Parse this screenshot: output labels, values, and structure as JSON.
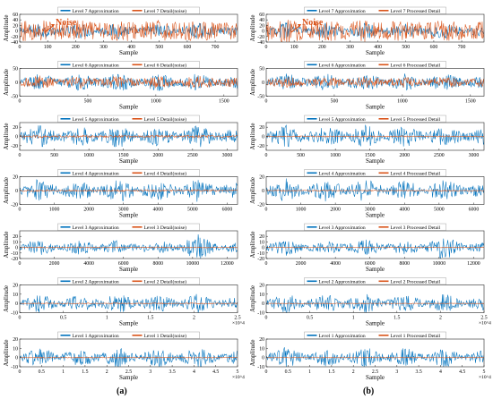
{
  "colors": {
    "approximation": "#0072BD",
    "detail": "#D95319",
    "axis": "#262626"
  },
  "panel_labels": [
    "(a)",
    "(b)"
  ],
  "annotation": {
    "text": "Noise"
  },
  "chart_data": [
    {
      "type": "line",
      "panel": "a",
      "level": 7,
      "title": "",
      "xlabel": "Sample",
      "ylabel": "Amplitude",
      "xlim": [
        0,
        780
      ],
      "ylim": [
        -40,
        60
      ],
      "xticks": [
        0,
        100,
        200,
        300,
        400,
        500,
        600,
        700
      ],
      "yticks": [
        -40,
        -20,
        0,
        20,
        40,
        60
      ],
      "x_multiplier": "",
      "envelope": [
        10,
        30,
        10,
        28,
        12,
        30,
        10,
        28,
        10,
        30,
        10,
        22
      ],
      "detail_envelope": [
        35,
        45,
        30,
        40,
        30,
        42,
        32,
        40,
        30,
        38,
        30,
        34
      ],
      "series": [
        {
          "name": "Level 7 Approximation"
        },
        {
          "name": "Level 7 Detail(noise)"
        }
      ],
      "annotation": "Noise"
    },
    {
      "type": "line",
      "panel": "a",
      "level": 6,
      "title": "",
      "xlabel": "Sample",
      "ylabel": "Amplitude",
      "xlim": [
        0,
        1600
      ],
      "ylim": [
        -50,
        50
      ],
      "xticks": [
        0,
        500,
        1000,
        1500
      ],
      "yticks": [
        -50,
        0,
        50
      ],
      "x_multiplier": "",
      "envelope": [
        12,
        35,
        12,
        32,
        14,
        35,
        12,
        32,
        12,
        34,
        12,
        24
      ],
      "detail_envelope": [
        12,
        25,
        12,
        22,
        12,
        24,
        12,
        22,
        12,
        24,
        12,
        18
      ],
      "series": [
        {
          "name": "Level 6 Approximation"
        },
        {
          "name": "Level 6 Detail(noise)"
        }
      ]
    },
    {
      "type": "line",
      "panel": "a",
      "level": 5,
      "title": "",
      "xlabel": "Sample",
      "ylabel": "Amplitude",
      "xlim": [
        0,
        3150
      ],
      "ylim": [
        -30,
        30
      ],
      "xticks": [
        0,
        500,
        1000,
        1500,
        2000,
        2500,
        3000
      ],
      "yticks": [
        -20,
        0,
        20
      ],
      "x_multiplier": "",
      "envelope": [
        8,
        26,
        8,
        24,
        9,
        26,
        8,
        24,
        8,
        25,
        8,
        18
      ],
      "detail_envelope": [
        2,
        3,
        2,
        3,
        2,
        3,
        2,
        3,
        2,
        3,
        2,
        2
      ],
      "series": [
        {
          "name": "Level 5 Approximation"
        },
        {
          "name": "Level 5 Detail(noise)"
        }
      ]
    },
    {
      "type": "line",
      "panel": "a",
      "level": 4,
      "title": "",
      "xlabel": "Sample",
      "ylabel": "Amplitude",
      "xlim": [
        0,
        6300
      ],
      "ylim": [
        -20,
        20
      ],
      "xticks": [
        0,
        1000,
        2000,
        3000,
        4000,
        5000,
        6000
      ],
      "yticks": [
        -20,
        0,
        20
      ],
      "x_multiplier": "",
      "envelope": [
        5,
        18,
        5,
        16,
        6,
        18,
        5,
        16,
        5,
        17,
        5,
        12
      ],
      "detail_envelope": [
        1,
        1.5,
        1,
        1.5,
        1,
        1.5,
        1,
        1.5,
        1,
        1.5,
        1,
        1
      ],
      "series": [
        {
          "name": "Level 4 Approximation"
        },
        {
          "name": "Level 4 Detail(noise)"
        }
      ]
    },
    {
      "type": "line",
      "panel": "a",
      "level": 3,
      "title": "",
      "xlabel": "Sample",
      "ylabel": "Amplitude",
      "xlim": [
        0,
        12600
      ],
      "ylim": [
        -20,
        30
      ],
      "xticks": [
        0,
        2000,
        4000,
        6000,
        8000,
        10000,
        12000
      ],
      "yticks": [
        -20,
        -10,
        0,
        10,
        20
      ],
      "x_multiplier": "",
      "envelope": [
        5,
        15,
        5,
        13,
        6,
        15,
        5,
        14,
        5,
        24,
        5,
        10
      ],
      "detail_envelope": [
        0.5,
        1,
        0.5,
        1,
        0.5,
        1,
        0.5,
        1,
        0.5,
        1,
        0.5,
        0.5
      ],
      "series": [
        {
          "name": "Level 3 Approximation"
        },
        {
          "name": "Level 3 Detail(noise)"
        }
      ]
    },
    {
      "type": "line",
      "panel": "a",
      "level": 2,
      "title": "",
      "xlabel": "Sample",
      "ylabel": "Amplitude",
      "xlim": [
        0,
        2.5
      ],
      "ylim": [
        -10,
        20
      ],
      "xticks": [
        0,
        0.5,
        1,
        1.5,
        2,
        2.5
      ],
      "yticks": [
        -10,
        0,
        10,
        20
      ],
      "x_multiplier": "×10^4",
      "envelope": [
        3,
        11,
        3,
        10,
        4,
        11,
        3,
        10,
        3,
        11,
        3,
        8
      ],
      "detail_envelope": [
        0.3,
        0.6,
        0.3,
        0.6,
        0.3,
        0.6,
        0.3,
        0.6,
        0.3,
        0.6,
        0.3,
        0.3
      ],
      "series": [
        {
          "name": "Level 2 Approximation"
        },
        {
          "name": "Level 2 Detail(noise)"
        }
      ]
    },
    {
      "type": "line",
      "panel": "a",
      "level": 1,
      "title": "",
      "xlabel": "Sample",
      "ylabel": "Amplitude",
      "xlim": [
        0,
        5
      ],
      "ylim": [
        -10,
        20
      ],
      "xticks": [
        0,
        0.5,
        1,
        1.5,
        2,
        2.5,
        3,
        3.5,
        4,
        4.5,
        5
      ],
      "yticks": [
        -10,
        0,
        10,
        20
      ],
      "x_multiplier": "×10^4",
      "envelope": [
        3,
        12,
        3,
        10,
        4,
        12,
        3,
        11,
        3,
        12,
        3,
        8
      ],
      "detail_envelope": [
        0.3,
        0.6,
        0.3,
        0.6,
        0.3,
        0.6,
        0.3,
        0.6,
        0.3,
        0.6,
        0.3,
        0.3
      ],
      "series": [
        {
          "name": "Level 1 Approximation"
        },
        {
          "name": "Level 1 Detail(noise)"
        }
      ]
    },
    {
      "type": "line",
      "panel": "b",
      "level": 7,
      "title": "",
      "xlabel": "Sample",
      "ylabel": "Amplitude",
      "xlim": [
        0,
        780
      ],
      "ylim": [
        -40,
        60
      ],
      "xticks": [
        0,
        100,
        200,
        300,
        400,
        500,
        600,
        700
      ],
      "yticks": [
        -40,
        -20,
        0,
        20,
        40,
        60
      ],
      "x_multiplier": "",
      "envelope": [
        10,
        30,
        10,
        28,
        12,
        30,
        10,
        28,
        10,
        30,
        10,
        22
      ],
      "detail_envelope": [
        35,
        45,
        30,
        40,
        30,
        42,
        32,
        40,
        30,
        38,
        30,
        34
      ],
      "series": [
        {
          "name": "Level 7 Approximation"
        },
        {
          "name": "Level 7 Processed Detail"
        }
      ],
      "annotation": "Noise"
    },
    {
      "type": "line",
      "panel": "b",
      "level": 6,
      "title": "",
      "xlabel": "Sample",
      "ylabel": "Amplitude",
      "xlim": [
        0,
        1600
      ],
      "ylim": [
        -50,
        50
      ],
      "xticks": [
        0,
        500,
        1000,
        1500
      ],
      "yticks": [
        -50,
        0,
        50
      ],
      "x_multiplier": "",
      "envelope": [
        12,
        35,
        12,
        32,
        14,
        35,
        12,
        32,
        12,
        34,
        12,
        24
      ],
      "detail_envelope": [
        10,
        22,
        10,
        20,
        10,
        22,
        10,
        20,
        10,
        22,
        10,
        16
      ],
      "series": [
        {
          "name": "Level 6 Approximation"
        },
        {
          "name": "Level 6 Processed Detail"
        }
      ]
    },
    {
      "type": "line",
      "panel": "b",
      "level": 5,
      "title": "",
      "xlabel": "Sample",
      "ylabel": "Amplitude",
      "xlim": [
        0,
        3150
      ],
      "ylim": [
        -30,
        30
      ],
      "xticks": [
        0,
        500,
        1000,
        1500,
        2000,
        2500,
        3000
      ],
      "yticks": [
        -20,
        0,
        20
      ],
      "x_multiplier": "",
      "envelope": [
        8,
        26,
        8,
        24,
        9,
        26,
        8,
        24,
        8,
        25,
        8,
        18
      ],
      "detail_envelope": [
        1,
        1.5,
        1,
        1.5,
        1,
        1.5,
        1,
        1.5,
        1,
        1.5,
        1,
        1
      ],
      "series": [
        {
          "name": "Level 5 Approximation"
        },
        {
          "name": "Level 5 Processed Detail"
        }
      ]
    },
    {
      "type": "line",
      "panel": "b",
      "level": 4,
      "title": "",
      "xlabel": "Sample",
      "ylabel": "Amplitude",
      "xlim": [
        0,
        6300
      ],
      "ylim": [
        -20,
        20
      ],
      "xticks": [
        0,
        1000,
        2000,
        3000,
        4000,
        5000,
        6000
      ],
      "yticks": [
        -20,
        0,
        20
      ],
      "x_multiplier": "",
      "envelope": [
        5,
        18,
        5,
        16,
        6,
        18,
        5,
        16,
        5,
        17,
        5,
        12
      ],
      "detail_envelope": [
        0.5,
        1,
        0.5,
        1,
        0.5,
        1,
        0.5,
        1,
        0.5,
        1,
        0.5,
        0.5
      ],
      "series": [
        {
          "name": "Level 4 Approximation"
        },
        {
          "name": "Level 4 Processed Detail"
        }
      ]
    },
    {
      "type": "line",
      "panel": "b",
      "level": 3,
      "title": "",
      "xlabel": "Sample",
      "ylabel": "Amplitude",
      "xlim": [
        0,
        12600
      ],
      "ylim": [
        -20,
        30
      ],
      "xticks": [
        0,
        2000,
        4000,
        6000,
        8000,
        10000,
        12000
      ],
      "yticks": [
        -20,
        -10,
        0,
        10,
        20
      ],
      "x_multiplier": "",
      "envelope": [
        5,
        15,
        5,
        13,
        6,
        15,
        5,
        14,
        5,
        24,
        5,
        10
      ],
      "detail_envelope": [
        0.3,
        0.6,
        0.3,
        0.6,
        0.3,
        0.6,
        0.3,
        0.6,
        0.3,
        0.6,
        0.3,
        0.3
      ],
      "series": [
        {
          "name": "Level 3 Approximation"
        },
        {
          "name": "Level 3 Processed Detail"
        }
      ]
    },
    {
      "type": "line",
      "panel": "b",
      "level": 2,
      "title": "",
      "xlabel": "Sample",
      "ylabel": "Amplitude",
      "xlim": [
        0,
        2.5
      ],
      "ylim": [
        -10,
        20
      ],
      "xticks": [
        0,
        0.5,
        1,
        1.5,
        2,
        2.5
      ],
      "yticks": [
        -10,
        0,
        10,
        20
      ],
      "x_multiplier": "×10^4",
      "envelope": [
        3,
        11,
        3,
        10,
        4,
        11,
        3,
        10,
        3,
        11,
        3,
        8
      ],
      "detail_envelope": [
        0.2,
        0.4,
        0.2,
        0.4,
        0.2,
        0.4,
        0.2,
        0.4,
        0.2,
        0.4,
        0.2,
        0.2
      ],
      "series": [
        {
          "name": "Level 2 Approximation"
        },
        {
          "name": "Level 2 Processed Detail"
        }
      ]
    },
    {
      "type": "line",
      "panel": "b",
      "level": 1,
      "title": "",
      "xlabel": "Sample",
      "ylabel": "Amplitude",
      "xlim": [
        0,
        5
      ],
      "ylim": [
        -10,
        20
      ],
      "xticks": [
        0,
        0.5,
        1,
        1.5,
        2,
        2.5,
        3,
        3.5,
        4,
        4.5,
        5
      ],
      "yticks": [
        -10,
        0,
        10,
        20
      ],
      "x_multiplier": "×10^4",
      "envelope": [
        3,
        12,
        3,
        10,
        4,
        12,
        3,
        11,
        3,
        12,
        3,
        8
      ],
      "detail_envelope": [
        0.2,
        0.4,
        0.2,
        0.4,
        0.2,
        0.4,
        0.2,
        0.4,
        0.2,
        0.4,
        0.2,
        0.2
      ],
      "series": [
        {
          "name": "Level 1 Approximation"
        },
        {
          "name": "Level 1 Processed Detail"
        }
      ]
    }
  ]
}
